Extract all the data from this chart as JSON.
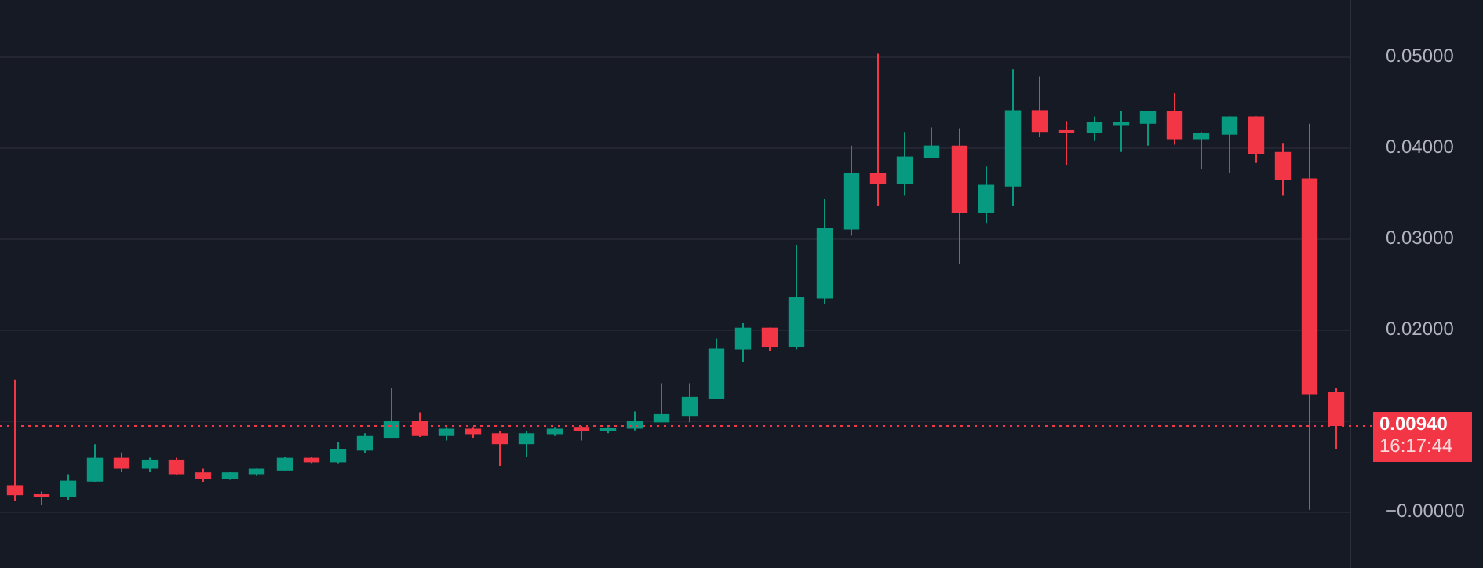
{
  "chart_data": {
    "type": "candlestick",
    "categories": [
      null,
      null,
      null,
      null,
      null,
      null,
      null,
      null,
      null,
      null,
      null,
      null,
      null,
      null,
      null,
      null,
      null,
      null,
      null,
      null,
      null,
      null,
      null,
      null,
      null,
      null,
      null,
      null,
      null,
      null,
      null,
      null,
      null,
      null,
      null,
      null,
      null,
      null,
      null,
      null,
      null,
      null,
      null,
      null,
      null,
      null,
      null,
      null,
      null,
      null
    ],
    "ohlc": [
      [
        0.0029,
        0.0145,
        0.0012,
        0.0018
      ],
      [
        0.0019,
        0.0022,
        0.0007,
        0.0018
      ],
      [
        0.0016,
        0.0041,
        0.0013,
        0.0034
      ],
      [
        0.0033,
        0.0074,
        0.0032,
        0.0059
      ],
      [
        0.0059,
        0.0065,
        0.0044,
        0.0047
      ],
      [
        0.0047,
        0.0059,
        0.0044,
        0.0057
      ],
      [
        0.0057,
        0.0059,
        0.004,
        0.0041
      ],
      [
        0.0043,
        0.0047,
        0.0032,
        0.0036
      ],
      [
        0.0036,
        0.0044,
        0.0035,
        0.0043
      ],
      [
        0.0041,
        0.0047,
        0.0039,
        0.0047
      ],
      [
        0.0045,
        0.006,
        0.0045,
        0.0059
      ],
      [
        0.0059,
        0.006,
        0.0053,
        0.0054
      ],
      [
        0.0054,
        0.0076,
        0.0053,
        0.0069
      ],
      [
        0.0067,
        0.0086,
        0.0064,
        0.0083
      ],
      [
        0.0081,
        0.0136,
        0.0081,
        0.01
      ],
      [
        0.01,
        0.0109,
        0.0082,
        0.0083
      ],
      [
        0.0083,
        0.0093,
        0.0078,
        0.0091
      ],
      [
        0.0091,
        0.0093,
        0.0081,
        0.0085
      ],
      [
        0.0086,
        0.0088,
        0.005,
        0.0074
      ],
      [
        0.0074,
        0.0088,
        0.006,
        0.0086
      ],
      [
        0.0085,
        0.0093,
        0.0083,
        0.0091
      ],
      [
        0.0093,
        0.0094,
        0.0078,
        0.0088
      ],
      [
        0.009,
        0.0093,
        0.0086,
        0.0092
      ],
      [
        0.0091,
        0.011,
        0.0089,
        0.01
      ],
      [
        0.0098,
        0.0141,
        0.0098,
        0.0107
      ],
      [
        0.0105,
        0.0141,
        0.0098,
        0.0126
      ],
      [
        0.0124,
        0.019,
        0.0124,
        0.0179
      ],
      [
        0.0178,
        0.0207,
        0.0164,
        0.0202
      ],
      [
        0.0202,
        0.0202,
        0.0176,
        0.0181
      ],
      [
        0.0181,
        0.0293,
        0.0178,
        0.0236
      ],
      [
        0.0234,
        0.0343,
        0.0228,
        0.0312
      ],
      [
        0.031,
        0.0402,
        0.0303,
        0.0372
      ],
      [
        0.0372,
        0.0503,
        0.0336,
        0.036
      ],
      [
        0.036,
        0.0417,
        0.0347,
        0.039
      ],
      [
        0.0388,
        0.0422,
        0.0388,
        0.0402
      ],
      [
        0.0402,
        0.0421,
        0.0272,
        0.0328
      ],
      [
        0.0328,
        0.0379,
        0.0317,
        0.0359
      ],
      [
        0.0357,
        0.0486,
        0.0336,
        0.0441
      ],
      [
        0.0441,
        0.0478,
        0.0412,
        0.0417
      ],
      [
        0.0419,
        0.0429,
        0.0381,
        0.0416
      ],
      [
        0.0416,
        0.0434,
        0.0407,
        0.0428
      ],
      [
        0.0427,
        0.044,
        0.0395,
        0.0428
      ],
      [
        0.0426,
        0.044,
        0.0402,
        0.044
      ],
      [
        0.044,
        0.046,
        0.0403,
        0.0409
      ],
      [
        0.0409,
        0.0417,
        0.0376,
        0.0416
      ],
      [
        0.0414,
        0.0434,
        0.0372,
        0.0434
      ],
      [
        0.0434,
        0.0434,
        0.0383,
        0.0393
      ],
      [
        0.0395,
        0.0405,
        0.0347,
        0.0364
      ],
      [
        0.0366,
        0.0426,
        0.0002,
        0.0129
      ],
      [
        0.0131,
        0.0136,
        0.0069,
        0.0094
      ]
    ],
    "colors": [
      "#f23645",
      "#f23645",
      "#089981",
      "#089981",
      "#f23645",
      "#089981",
      "#f23645",
      "#f23645",
      "#089981",
      "#089981",
      "#089981",
      "#f23645",
      "#089981",
      "#089981",
      "#089981",
      "#f23645",
      "#089981",
      "#f23645",
      "#f23645",
      "#089981",
      "#089981",
      "#f23645",
      "#089981",
      "#089981",
      "#089981",
      "#089981",
      "#089981",
      "#089981",
      "#f23645",
      "#089981",
      "#089981",
      "#089981",
      "#f23645",
      "#089981",
      "#089981",
      "#f23645",
      "#089981",
      "#089981",
      "#f23645",
      "#f23645",
      "#089981",
      "#089981",
      "#089981",
      "#f23645",
      "#089981",
      "#089981",
      "#f23645",
      "#f23645",
      "#f23645",
      "#f23645"
    ],
    "ylim": [
      -0.0062,
      0.0562
    ],
    "yticks": [
      {
        "value": 0,
        "label": "−0.00000"
      },
      {
        "value": 0.01,
        "label": null
      },
      {
        "value": 0.02,
        "label": "0.02000"
      },
      {
        "value": 0.03,
        "label": "0.03000"
      },
      {
        "value": 0.04,
        "label": "0.04000"
      },
      {
        "value": 0.05,
        "label": "0.05000"
      }
    ],
    "grid": "y",
    "tick_labels": "y",
    "legend": false,
    "ref_lines": [
      {
        "axis": "y",
        "value": 0.0094,
        "label": "0.00940",
        "color": "#f23645",
        "line_style": "dotted"
      }
    ],
    "annotations": [
      "16:17:44"
    ]
  }
}
